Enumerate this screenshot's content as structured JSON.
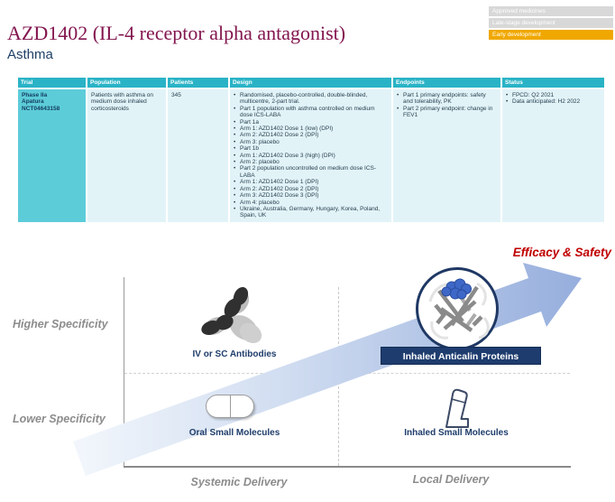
{
  "header": {
    "title": "AZD1402 (IL-4 receptor alpha antagonist)",
    "subtitle": "Asthma",
    "badges": [
      {
        "label": "Approved medicines",
        "active": false
      },
      {
        "label": "Late-stage development",
        "active": false
      },
      {
        "label": "Early development",
        "active": true
      }
    ]
  },
  "table": {
    "columns": [
      "Trial",
      "Population",
      "Patients",
      "Design",
      "Endpoints",
      "Status"
    ],
    "row": {
      "trial": [
        "Phase IIa",
        "Apatura",
        "NCT04643158"
      ],
      "population": "Patients with asthma on medium dose inhaled corticosteroids",
      "patients": "345",
      "design": [
        "Randomised, placebo-controlled, double-blinded, multicentre, 2-part trial.",
        "Part 1 population with asthma controlled on medium dose ICS-LABA",
        "Part 1a",
        "Arm 1: AZD1402 Dose 1 (low) (DPI)",
        "Arm 2: AZD1402 Dose 2 (DPI)",
        "Arm 3: placebo",
        "Part 1b",
        "Arm 1: AZD1402 Dose 3 (high) (DPI)",
        "Arm 2: placebo",
        "Part 2 population uncontrolled on medium dose ICS-LABA",
        "Arm 1: AZD1402 Dose 1 (DPI)",
        "Arm 2: AZD1402 Dose 2 (DPI)",
        "Arm 3: AZD1402 Dose 3 (DPI)",
        "Arm 4: placebo",
        "Ukraine, Australia, Germany, Hungary, Korea, Poland, Spain, UK"
      ],
      "endpoints": [
        "Part 1 primary endpoints: safety and tolerability, PK",
        "Part 2 primary endpoint: change in FEV1"
      ],
      "status": [
        "FPCD: Q2 2021",
        "Data anticipated: H2 2022"
      ]
    }
  },
  "diagram": {
    "arrow_label": "Efficacy & Safety",
    "y_axis_high": "Higher Specificity",
    "y_axis_low": "Lower Specificity",
    "x_axis_left": "Systemic Delivery",
    "x_axis_right": "Local Delivery",
    "quadrant_top_left": "IV or SC Antibodies",
    "quadrant_top_right": "Inhaled Anticalin Proteins",
    "quadrant_bottom_left": "Oral Small Molecules",
    "quadrant_bottom_right": "Inhaled Small Molecules",
    "colors": {
      "arrow_blue": "#9db5e0",
      "highlight_red": "#c00000",
      "navy": "#1f3864"
    }
  },
  "colors": {
    "title_mulberry": "#83164f",
    "subtitle_navy": "#1f4067",
    "table_header_teal": "#2ab3c6",
    "trial_cell_teal": "#5dccd9",
    "cell_light_blue": "#e2f3f8",
    "badge_active_amber": "#f0a800",
    "badge_inactive_gray": "#d8d8d8"
  }
}
